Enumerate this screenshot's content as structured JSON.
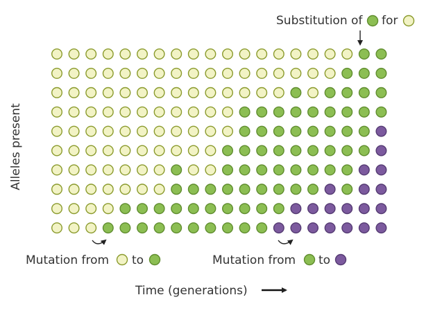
{
  "labels": {
    "substitution_prefix": "Substitution of",
    "substitution_mid": "for",
    "mutation1_prefix": "Mutation from",
    "mutation1_mid": "to",
    "mutation2_prefix": "Mutation from",
    "mutation2_mid": "to",
    "y_axis": "Alleles present",
    "x_axis": "Time (generations)"
  },
  "colors": {
    "ancestral_fill": "#f2f3c5",
    "ancestral_stroke": "#8a9a2c",
    "green_fill": "#8cbe53",
    "green_stroke": "#5f8c2e",
    "purple_fill": "#7c5a9e",
    "purple_stroke": "#543a72",
    "text": "#333333"
  },
  "grid": {
    "generations": 20,
    "rows": [
      "YYYYYYYYYYYYYYYYYYGG",
      "YYYYYYYYYYYYYYYYYGGG",
      "YYYYYYYYYYYYYYGYGGGG",
      "YYYYYYYYYYYGGGGGGGGG",
      "YYYYYYYYYYYGGGGGGGGP",
      "YYYYYYYYYYGGGGGGGGGP",
      "YYYYYYYGYYGGGGGGGGPP",
      "YYYYYYYGGGGGGGGGPGPP",
      "YYYYGGGGGGGGGGPPPPPP",
      "YYYGGGGGGGGGGPPPPPPP"
    ]
  }
}
